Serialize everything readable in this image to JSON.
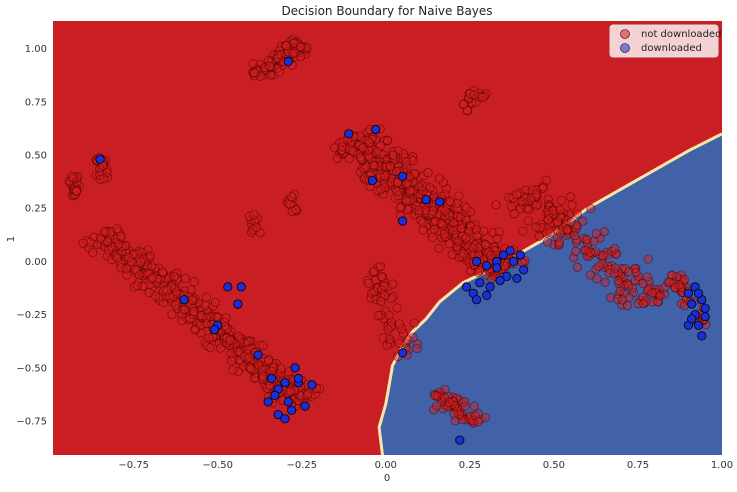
{
  "chart_data": {
    "type": "scatter",
    "title": "Decision Boundary for Naive Bayes",
    "xlabel": "0",
    "ylabel": "1",
    "xlim": [
      -0.99,
      1.0
    ],
    "ylim": [
      -0.91,
      1.13
    ],
    "x_ticks": [
      -0.75,
      -0.5,
      -0.25,
      0.0,
      0.25,
      0.5,
      0.75,
      1.0
    ],
    "x_tick_labels": [
      "−0.75",
      "−0.50",
      "−0.25",
      "0.00",
      "0.25",
      "0.50",
      "0.75",
      "1.00"
    ],
    "y_ticks": [
      -0.75,
      -0.5,
      -0.25,
      0.0,
      0.25,
      0.5,
      0.75,
      1.0
    ],
    "y_tick_labels": [
      "−0.75",
      "−0.50",
      "−0.25",
      "0.00",
      "0.25",
      "0.50",
      "0.75",
      "1.00"
    ],
    "grid": false,
    "legend_position": "top-right",
    "regions": {
      "not_downloaded_color": "#c81e24",
      "downloaded_color": "#4162a8",
      "boundary_color": "#f5e6a8",
      "boundary": [
        [
          -0.01,
          -0.91
        ],
        [
          -0.02,
          -0.78
        ],
        [
          0.0,
          -0.67
        ],
        [
          0.01,
          -0.58
        ],
        [
          0.02,
          -0.49
        ],
        [
          0.05,
          -0.4
        ],
        [
          0.08,
          -0.33
        ],
        [
          0.12,
          -0.27
        ],
        [
          0.16,
          -0.19
        ],
        [
          0.23,
          -0.1
        ],
        [
          0.31,
          -0.04
        ],
        [
          0.4,
          0.04
        ],
        [
          0.5,
          0.13
        ],
        [
          0.6,
          0.25
        ],
        [
          0.7,
          0.34
        ],
        [
          0.8,
          0.43
        ],
        [
          0.9,
          0.52
        ],
        [
          1.0,
          0.6
        ]
      ]
    },
    "series": [
      {
        "name": "not downloaded",
        "color": "#d81e1e",
        "clusters": [
          {
            "x1": -0.85,
            "y1": 0.13,
            "x2": -0.24,
            "y2": -0.66,
            "width": 0.07,
            "count": 420
          },
          {
            "x1": -0.11,
            "y1": 0.58,
            "x2": 0.36,
            "y2": -0.05,
            "width": 0.09,
            "count": 480
          },
          {
            "x1": -0.39,
            "y1": 0.87,
            "x2": -0.25,
            "y2": 1.02,
            "width": 0.05,
            "count": 90
          },
          {
            "x1": -0.93,
            "y1": 0.4,
            "x2": -0.92,
            "y2": 0.31,
            "width": 0.02,
            "count": 25
          },
          {
            "x1": -0.85,
            "y1": 0.49,
            "x2": -0.84,
            "y2": 0.38,
            "width": 0.02,
            "count": 25
          },
          {
            "x1": 0.4,
            "y1": 0.33,
            "x2": 0.8,
            "y2": -0.2,
            "width": 0.09,
            "count": 200
          },
          {
            "x1": 0.15,
            "y1": -0.62,
            "x2": 0.27,
            "y2": -0.76,
            "width": 0.05,
            "count": 60
          },
          {
            "x1": 0.29,
            "y1": 0.8,
            "x2": 0.24,
            "y2": 0.7,
            "width": 0.03,
            "count": 20
          },
          {
            "x1": -0.04,
            "y1": -0.02,
            "x2": 0.07,
            "y2": -0.45,
            "width": 0.05,
            "count": 60
          },
          {
            "x1": -0.28,
            "y1": 0.32,
            "x2": -0.28,
            "y2": 0.22,
            "width": 0.02,
            "count": 12
          },
          {
            "x1": -0.4,
            "y1": 0.22,
            "x2": -0.38,
            "y2": 0.12,
            "width": 0.02,
            "count": 12
          },
          {
            "x1": 0.85,
            "y1": -0.06,
            "x2": 0.95,
            "y2": -0.3,
            "width": 0.03,
            "count": 40
          }
        ]
      },
      {
        "name": "downloaded",
        "color": "#1a2fd6",
        "points": [
          [
            -0.29,
            0.94
          ],
          [
            -0.11,
            0.6
          ],
          [
            -0.03,
            0.62
          ],
          [
            -0.04,
            0.38
          ],
          [
            0.05,
            0.4
          ],
          [
            0.05,
            0.19
          ],
          [
            0.12,
            0.29
          ],
          [
            0.16,
            0.28
          ],
          [
            -0.85,
            0.48
          ],
          [
            -0.6,
            -0.18
          ],
          [
            -0.5,
            -0.3
          ],
          [
            -0.51,
            -0.32
          ],
          [
            -0.47,
            -0.12
          ],
          [
            -0.43,
            -0.12
          ],
          [
            -0.44,
            -0.2
          ],
          [
            -0.38,
            -0.44
          ],
          [
            -0.34,
            -0.55
          ],
          [
            -0.32,
            -0.6
          ],
          [
            -0.3,
            -0.57
          ],
          [
            -0.27,
            -0.5
          ],
          [
            -0.29,
            -0.66
          ],
          [
            -0.32,
            -0.72
          ],
          [
            -0.3,
            -0.74
          ],
          [
            -0.35,
            -0.66
          ],
          [
            -0.26,
            -0.57
          ],
          [
            -0.22,
            -0.58
          ],
          [
            -0.24,
            -0.68
          ],
          [
            -0.28,
            -0.7
          ],
          [
            -0.33,
            -0.63
          ],
          [
            -0.26,
            -0.55
          ],
          [
            0.24,
            -0.12
          ],
          [
            0.26,
            -0.15
          ],
          [
            0.27,
            -0.18
          ],
          [
            0.3,
            -0.02
          ],
          [
            0.33,
            0.0
          ],
          [
            0.35,
            0.03
          ],
          [
            0.37,
            0.05
          ],
          [
            0.4,
            0.03
          ],
          [
            0.38,
            0.0
          ],
          [
            0.41,
            -0.04
          ],
          [
            0.34,
            -0.09
          ],
          [
            0.36,
            -0.07
          ],
          [
            0.31,
            -0.12
          ],
          [
            0.3,
            -0.16
          ],
          [
            0.28,
            -0.1
          ],
          [
            0.39,
            -0.08
          ],
          [
            0.27,
            0.0
          ],
          [
            0.33,
            -0.03
          ],
          [
            0.22,
            -0.84
          ],
          [
            0.05,
            -0.43
          ],
          [
            0.9,
            -0.15
          ],
          [
            0.91,
            -0.2
          ],
          [
            0.92,
            -0.25
          ],
          [
            0.93,
            -0.3
          ],
          [
            0.94,
            -0.18
          ],
          [
            0.95,
            -0.22
          ],
          [
            0.92,
            -0.12
          ],
          [
            0.95,
            -0.26
          ],
          [
            0.9,
            -0.3
          ],
          [
            0.94,
            -0.35
          ],
          [
            0.93,
            -0.15
          ],
          [
            0.91,
            -0.27
          ]
        ]
      }
    ]
  }
}
